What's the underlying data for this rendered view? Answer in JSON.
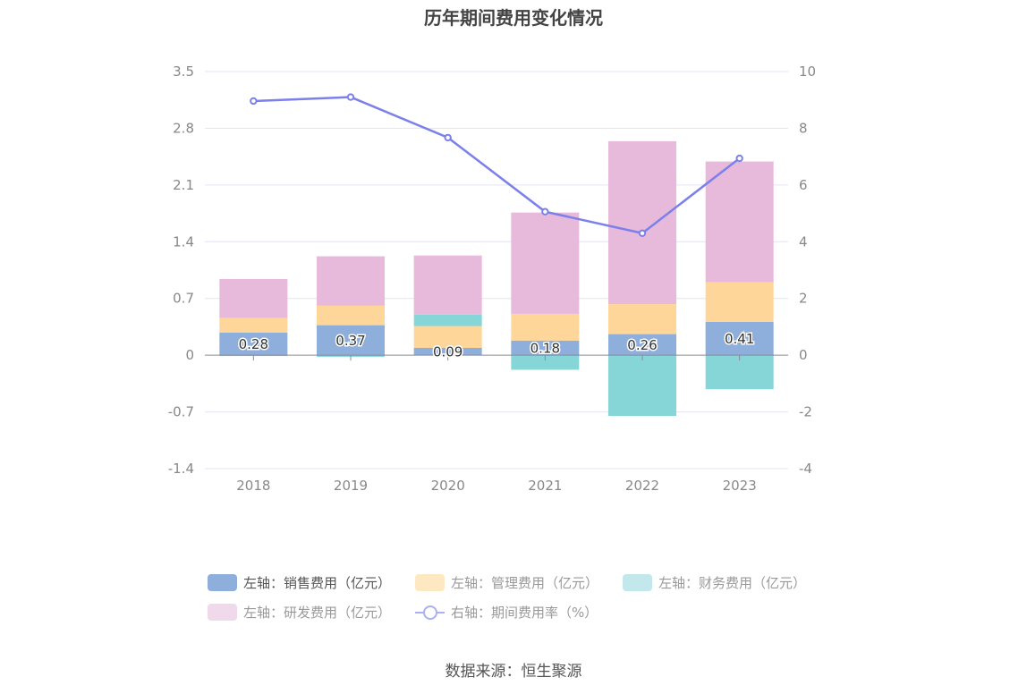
{
  "title": "历年期间费用变化情况",
  "source": "数据来源：恒生聚源",
  "legend": [
    {
      "label": "左轴：销售费用（亿元）",
      "color": "#8eaedb"
    },
    {
      "label": "左轴：管理费用（亿元）",
      "color": "#fde8c2"
    },
    {
      "label": "左轴：财务费用（亿元）",
      "color": "#c2e8ec"
    },
    {
      "label": "左轴：研发费用（亿元）",
      "color": "#f1d9ec"
    },
    {
      "label": "右轴：期间费用率（%）",
      "color": "#aab0f5"
    }
  ],
  "chart_data": {
    "type": "bar",
    "stacked": true,
    "categories": [
      "2018",
      "2019",
      "2020",
      "2021",
      "2022",
      "2023"
    ],
    "series": [
      {
        "name": "左轴：销售费用（亿元）",
        "axis": "left",
        "color": "#8eaedb",
        "values": [
          0.28,
          0.37,
          0.09,
          0.18,
          0.26,
          0.41
        ],
        "data_labels": [
          "0.28",
          "0.37",
          "0.09",
          "0.18",
          "0.26",
          "0.41"
        ]
      },
      {
        "name": "左轴：管理费用（亿元）",
        "axis": "left",
        "color": "#fed69a",
        "values": [
          0.18,
          0.24,
          0.27,
          0.33,
          0.37,
          0.49
        ]
      },
      {
        "name": "左轴：财务费用（亿元）",
        "axis": "left",
        "color": "#86d6d8",
        "values": [
          -0.01,
          -0.02,
          0.14,
          -0.18,
          -0.75,
          -0.42
        ]
      },
      {
        "name": "左轴：研发费用（亿元）",
        "axis": "left",
        "color": "#e7b9da",
        "values": [
          0.48,
          0.61,
          0.73,
          1.25,
          2.01,
          1.49
        ]
      },
      {
        "name": "右轴：期间费用率（%）",
        "axis": "right",
        "type": "line",
        "color": "#7b80ea",
        "values": [
          8.96,
          9.1,
          7.67,
          5.06,
          4.3,
          6.94
        ]
      }
    ],
    "left_axis": {
      "ylim": [
        -1.4,
        3.5
      ],
      "ticks": [
        "-1.4",
        "-0.7",
        "0",
        "0.7",
        "1.4",
        "2.1",
        "2.8",
        "3.5"
      ]
    },
    "right_axis": {
      "ylim": [
        -4,
        10
      ],
      "ticks": [
        "-4",
        "-2",
        "0",
        "2",
        "4",
        "6",
        "8",
        "10"
      ]
    },
    "grid": true,
    "legend_position": "bottom"
  }
}
